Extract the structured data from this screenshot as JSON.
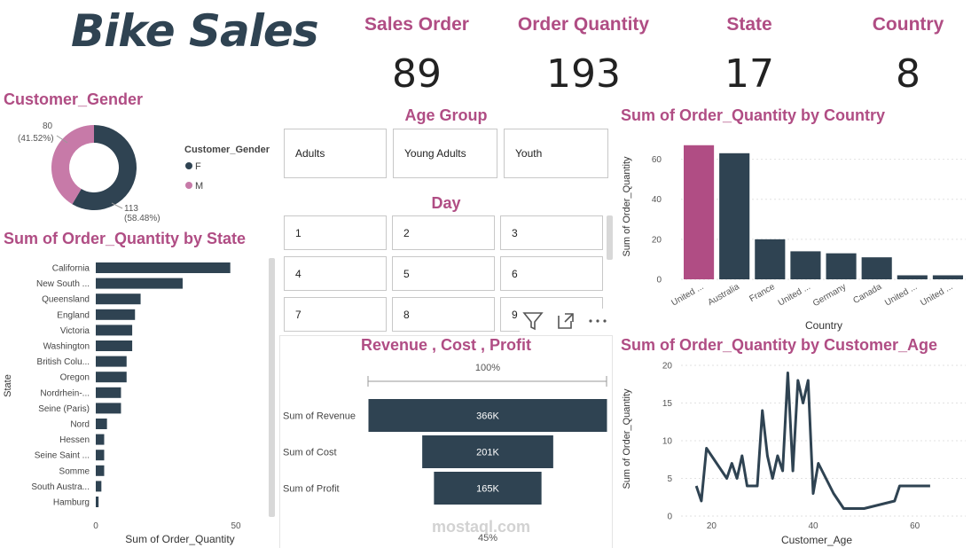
{
  "title": "Bike Sales",
  "kpis": [
    {
      "label": "Sales Order",
      "value": "89"
    },
    {
      "label": "Order Quantity",
      "value": "193"
    },
    {
      "label": "State",
      "value": "17"
    },
    {
      "label": "Country",
      "value": "8"
    }
  ],
  "gender": {
    "title": "Customer_Gender",
    "legend_title": "Customer_Gender",
    "slices": [
      {
        "label": "F",
        "value": 113,
        "pct": "(58.48%)",
        "color": "#2f4352"
      },
      {
        "label": "M",
        "value": 80,
        "pct": "(41.52%)",
        "color": "#c77aa8"
      }
    ]
  },
  "age_group": {
    "title": "Age Group",
    "options": [
      "Adults",
      "Young Adults",
      "Youth"
    ]
  },
  "day": {
    "title": "Day",
    "options": [
      "1",
      "2",
      "3",
      "4",
      "5",
      "6",
      "7",
      "8",
      "9"
    ]
  },
  "state_chart": {
    "title": "Sum of Order_Quantity by State",
    "chart_data": {
      "type": "bar",
      "orientation": "horizontal",
      "categories": [
        "California",
        "New South ...",
        "Queensland",
        "England",
        "Victoria",
        "Washington",
        "British Colu...",
        "Oregon",
        "Nordrhein-...",
        "Seine (Paris)",
        "Nord",
        "Hessen",
        "Seine Saint ...",
        "Somme",
        "South Austra...",
        "Hamburg"
      ],
      "values": [
        48,
        31,
        16,
        14,
        13,
        13,
        11,
        11,
        9,
        9,
        4,
        3,
        3,
        3,
        2,
        1
      ],
      "xlabel": "Sum of Order_Quantity",
      "ylabel": "State",
      "ticks": [
        0,
        50
      ],
      "xlim": [
        0,
        50
      ],
      "color": "#2f4352"
    }
  },
  "country_chart": {
    "title": "Sum of Order_Quantity by Country",
    "chart_data": {
      "type": "bar",
      "categories": [
        "United ...",
        "Australia",
        "France",
        "United ...",
        "Germany",
        "Canada",
        "United ...",
        "United ..."
      ],
      "values": [
        67,
        63,
        20,
        14,
        13,
        11,
        2,
        2
      ],
      "highlight_index": 0,
      "xlabel": "Country",
      "ylabel": "Sum of Order_Quantity",
      "ticks": [
        0,
        20,
        40,
        60
      ],
      "ylim": [
        0,
        70
      ],
      "color": "#2f4352",
      "highlight_color": "#b04d84"
    }
  },
  "age_chart": {
    "title": "Sum of Order_Quantity by Customer_Age",
    "chart_data": {
      "type": "line",
      "x": [
        17,
        18,
        19,
        23,
        24,
        25,
        26,
        27,
        28,
        29,
        30,
        31,
        32,
        33,
        34,
        35,
        36,
        37,
        38,
        39,
        40,
        41,
        44,
        46,
        48,
        50,
        56,
        57,
        63
      ],
      "y": [
        4,
        2,
        9,
        5,
        7,
        5,
        8,
        4,
        4,
        4,
        14,
        8,
        5,
        8,
        6,
        19,
        6,
        18,
        15,
        18,
        3,
        7,
        3,
        1,
        1,
        1,
        2,
        4,
        4
      ],
      "xlabel": "Customer_Age",
      "ylabel": "Sum of Order_Quantity",
      "xticks": [
        20,
        40,
        60
      ],
      "yticks": [
        0,
        5,
        10,
        15,
        20
      ],
      "xlim": [
        14,
        70
      ],
      "ylim": [
        0,
        20
      ],
      "color": "#2f4352"
    }
  },
  "funnel_chart": {
    "title": "Revenue , Cost , Profit",
    "top_pct": "100%",
    "bottom_pct": "45%",
    "chart_data": {
      "type": "funnel",
      "categories": [
        "Sum of Revenue",
        "Sum of Cost",
        "Sum of Profit"
      ],
      "values": [
        366,
        201,
        165
      ],
      "labels": [
        "366K",
        "201K",
        "165K"
      ],
      "color": "#2f4352"
    }
  },
  "toolbar": {
    "icons": [
      "filter-icon",
      "focus-mode-icon",
      "more-options-icon"
    ]
  },
  "watermark": {
    "name": "mostaql.com"
  }
}
